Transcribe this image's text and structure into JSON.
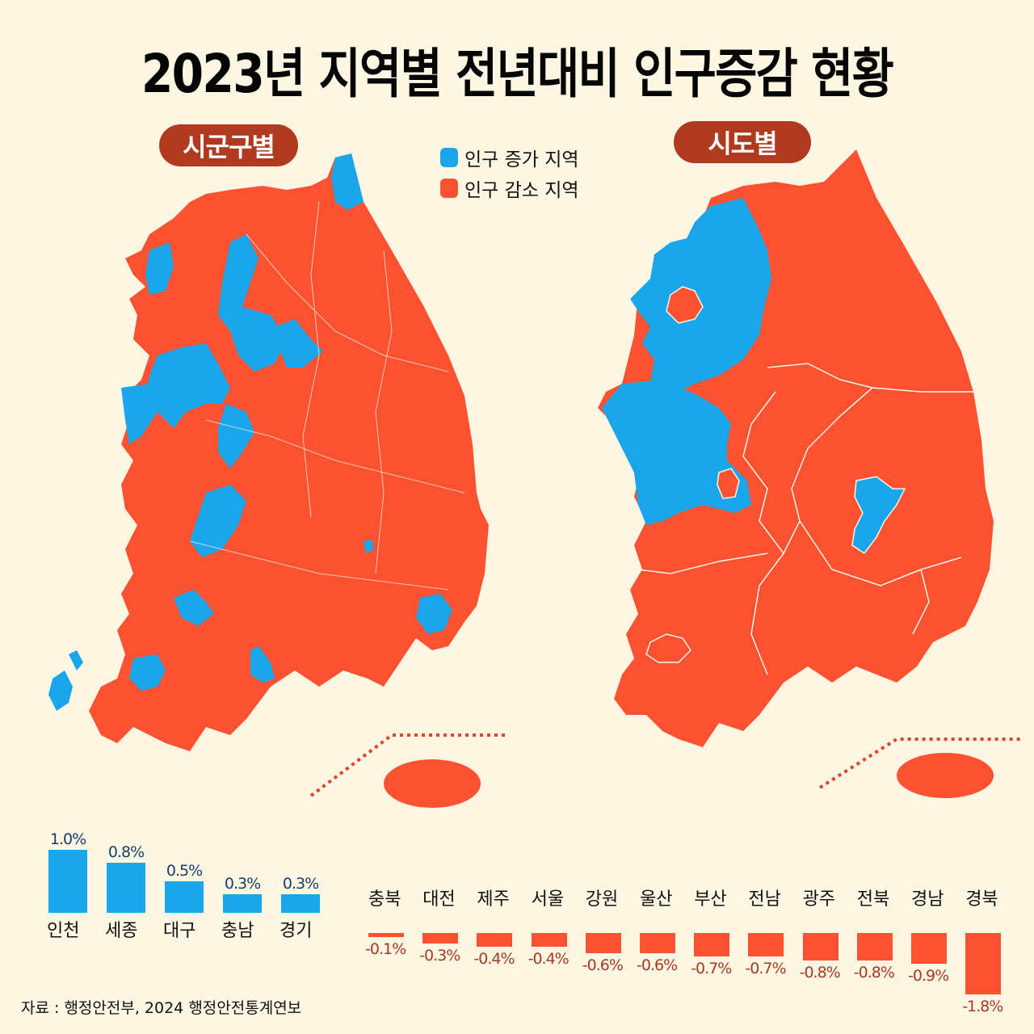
{
  "header": {
    "title": "2023년 지역별 전년대비 인구증감 현황"
  },
  "panels": {
    "left_label": "시군구별",
    "right_label": "시도별"
  },
  "legend": [
    {
      "label": "인구 증가 지역",
      "color": "#1aa6ea"
    },
    {
      "label": "인구 감소 지역",
      "color": "#fd5232"
    }
  ],
  "colors": {
    "increase": "#1aa6ea",
    "decrease": "#fd5232",
    "pill": "#b03a20",
    "background": "#fdf6e3",
    "value_increase_text": "#1b3d6e",
    "value_decrease_text": "#a83a22"
  },
  "chart_data": [
    {
      "type": "bar",
      "title": "인구 증가 지역 (시도별)",
      "categories": [
        "인천",
        "세종",
        "대구",
        "충남",
        "경기"
      ],
      "values": [
        1.0,
        0.8,
        0.5,
        0.3,
        0.3
      ],
      "labels": [
        "1.0%",
        "0.8%",
        "0.5%",
        "0.3%",
        "0.3%"
      ],
      "unit": "%",
      "color": "#1aa6ea"
    },
    {
      "type": "bar",
      "title": "인구 감소 지역 (시도별)",
      "categories": [
        "충북",
        "대전",
        "제주",
        "서울",
        "강원",
        "울산",
        "부산",
        "전남",
        "광주",
        "전북",
        "경남",
        "경북"
      ],
      "values": [
        -0.1,
        -0.3,
        -0.4,
        -0.4,
        -0.6,
        -0.6,
        -0.7,
        -0.7,
        -0.8,
        -0.8,
        -0.9,
        -1.8
      ],
      "labels": [
        "-0.1%",
        "-0.3%",
        "-0.4%",
        "-0.4%",
        "-0.6%",
        "-0.6%",
        "-0.7%",
        "-0.7%",
        "-0.8%",
        "-0.8%",
        "-0.9%",
        "-1.8%"
      ],
      "unit": "%",
      "color": "#fd5232"
    }
  ],
  "footer": {
    "source": "자료 : 행정안전부, 2024 행정안전통계연보"
  }
}
